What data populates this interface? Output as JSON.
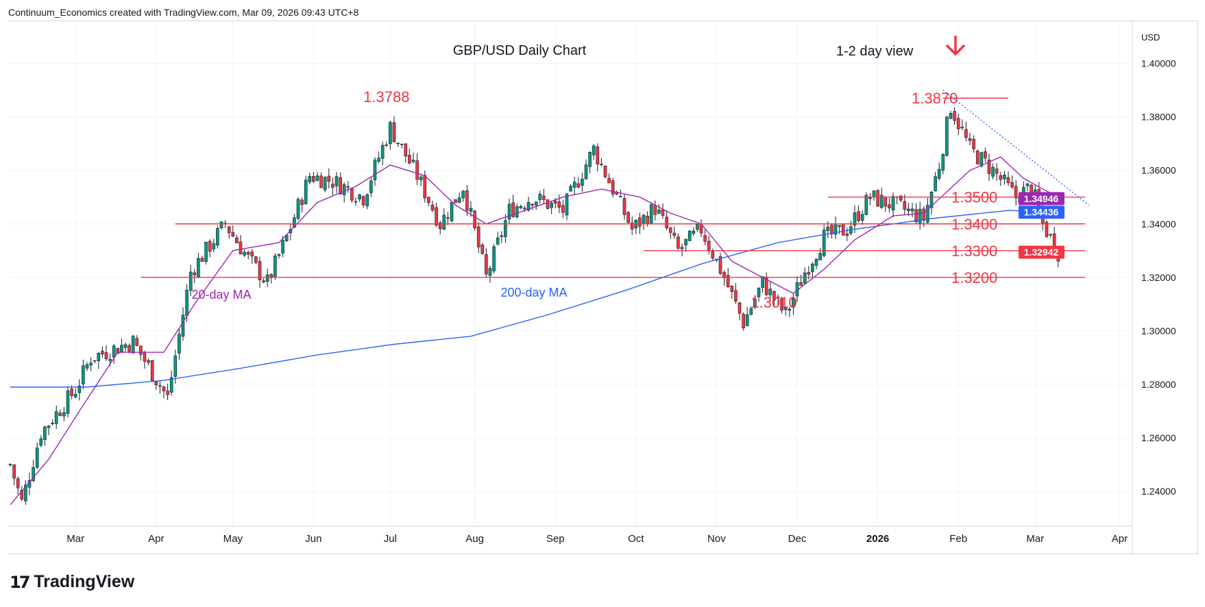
{
  "header": {
    "attribution": "Continuum_Economics created with TradingView.com, Mar 09, 2026 09:43 UTC+8"
  },
  "logo": {
    "icon": "tradingview-logo-icon",
    "text": "TradingView"
  },
  "chart_data": {
    "type": "candlestick",
    "title": "GBP/USD Daily Chart",
    "view_label": "1-2 day view",
    "currency": "USD",
    "y_ticks": [
      "1.40000",
      "1.38000",
      "1.36000",
      "1.34000",
      "1.32000",
      "1.30000",
      "1.28000",
      "1.26000",
      "1.24000"
    ],
    "ylim": [
      1.227,
      1.416
    ],
    "x_tick_labels": [
      {
        "label": "Mar",
        "i": 17
      },
      {
        "label": "Apr",
        "i": 38
      },
      {
        "label": "May",
        "i": 58
      },
      {
        "label": "Jun",
        "i": 79
      },
      {
        "label": "Jul",
        "i": 99
      },
      {
        "label": "Aug",
        "i": 121
      },
      {
        "label": "Sep",
        "i": 142
      },
      {
        "label": "Oct",
        "i": 163
      },
      {
        "label": "Nov",
        "i": 184
      },
      {
        "label": "Dec",
        "i": 205
      },
      {
        "label": "2026",
        "i": 226
      },
      {
        "label": "Feb",
        "i": 247
      },
      {
        "label": "Mar",
        "i": 267
      },
      {
        "label": "Apr",
        "i": 289
      }
    ],
    "anchors": [
      [
        0,
        1.25
      ],
      [
        3,
        1.236
      ],
      [
        8,
        1.262
      ],
      [
        17,
        1.278
      ],
      [
        21,
        1.29
      ],
      [
        32,
        1.296
      ],
      [
        41,
        1.275
      ],
      [
        47,
        1.322
      ],
      [
        56,
        1.34
      ],
      [
        62,
        1.327
      ],
      [
        67,
        1.318
      ],
      [
        72,
        1.335
      ],
      [
        78,
        1.358
      ],
      [
        84,
        1.356
      ],
      [
        92,
        1.35
      ],
      [
        99,
        1.376
      ],
      [
        106,
        1.358
      ],
      [
        112,
        1.34
      ],
      [
        118,
        1.354
      ],
      [
        124,
        1.32
      ],
      [
        130,
        1.345
      ],
      [
        136,
        1.35
      ],
      [
        144,
        1.345
      ],
      [
        152,
        1.368
      ],
      [
        162,
        1.338
      ],
      [
        168,
        1.346
      ],
      [
        174,
        1.33
      ],
      [
        180,
        1.338
      ],
      [
        186,
        1.32
      ],
      [
        191,
        1.303
      ],
      [
        196,
        1.318
      ],
      [
        202,
        1.306
      ],
      [
        207,
        1.322
      ],
      [
        212,
        1.335
      ],
      [
        218,
        1.338
      ],
      [
        224,
        1.35
      ],
      [
        232,
        1.346
      ],
      [
        238,
        1.342
      ],
      [
        242,
        1.362
      ],
      [
        245,
        1.384
      ],
      [
        250,
        1.368
      ],
      [
        256,
        1.36
      ],
      [
        262,
        1.35
      ],
      [
        266,
        1.354
      ],
      [
        269,
        1.34
      ],
      [
        273,
        1.3294
      ]
    ],
    "ma20": [
      [
        0,
        1.235
      ],
      [
        10,
        1.252
      ],
      [
        18,
        1.27
      ],
      [
        28,
        1.292
      ],
      [
        40,
        1.292
      ],
      [
        48,
        1.31
      ],
      [
        58,
        1.33
      ],
      [
        70,
        1.333
      ],
      [
        80,
        1.348
      ],
      [
        90,
        1.354
      ],
      [
        99,
        1.362
      ],
      [
        108,
        1.358
      ],
      [
        116,
        1.347
      ],
      [
        124,
        1.34
      ],
      [
        134,
        1.345
      ],
      [
        144,
        1.35
      ],
      [
        154,
        1.353
      ],
      [
        164,
        1.35
      ],
      [
        172,
        1.344
      ],
      [
        180,
        1.34
      ],
      [
        188,
        1.326
      ],
      [
        196,
        1.32
      ],
      [
        204,
        1.314
      ],
      [
        212,
        1.323
      ],
      [
        220,
        1.334
      ],
      [
        230,
        1.343
      ],
      [
        238,
        1.344
      ],
      [
        244,
        1.352
      ],
      [
        250,
        1.36
      ],
      [
        258,
        1.365
      ],
      [
        264,
        1.357
      ],
      [
        269,
        1.353
      ],
      [
        274,
        1.3494
      ]
    ],
    "ma200": [
      [
        0,
        1.279
      ],
      [
        20,
        1.279
      ],
      [
        40,
        1.2815
      ],
      [
        60,
        1.286
      ],
      [
        80,
        1.291
      ],
      [
        100,
        1.295
      ],
      [
        120,
        1.298
      ],
      [
        140,
        1.306
      ],
      [
        160,
        1.315
      ],
      [
        180,
        1.325
      ],
      [
        200,
        1.333
      ],
      [
        220,
        1.338
      ],
      [
        240,
        1.342
      ],
      [
        260,
        1.345
      ],
      [
        274,
        1.3444
      ]
    ],
    "levels": [
      {
        "value": 1.387,
        "label": "1.3870",
        "x_from": 243,
        "x_to": 260
      },
      {
        "value": 1.35,
        "label": "1.3500",
        "x_from": 213,
        "x_to": 280
      },
      {
        "value": 1.34,
        "label": "1.3400",
        "x_from": 43,
        "x_to": 280
      },
      {
        "value": 1.33,
        "label": "1.3300",
        "x_from": 165,
        "x_to": 280
      },
      {
        "value": 1.32,
        "label": "1.3200",
        "x_from": 34,
        "x_to": 280
      }
    ],
    "trendline": [
      [
        243,
        1.39
      ],
      [
        281,
        1.347
      ]
    ],
    "annotations": [
      {
        "text": "1.3788",
        "i": 98,
        "v": 1.3788
      },
      {
        "text": "1.3010",
        "i": 190,
        "v": 1.301
      }
    ],
    "ma_labels": {
      "ma20": "20-day MA",
      "ma200": "200-day MA"
    },
    "price_tags": [
      {
        "text": "1.34946",
        "value": 1.34946,
        "color": "#9c27b0"
      },
      {
        "text": "1.34436",
        "value": 1.34436,
        "color": "#2962ff"
      },
      {
        "text": "1.32942",
        "value": 1.32942,
        "color": "#f23645"
      }
    ],
    "colors": {
      "up": "#089981",
      "down": "#f23645",
      "wick": "#131722",
      "ma20": "#9c27b0",
      "ma200": "#2962ff",
      "levels": "#f23645",
      "trendline": "#2962ff",
      "grid": "#f0f3fa",
      "arrow": "#f23645"
    },
    "arrow_direction": "down"
  }
}
